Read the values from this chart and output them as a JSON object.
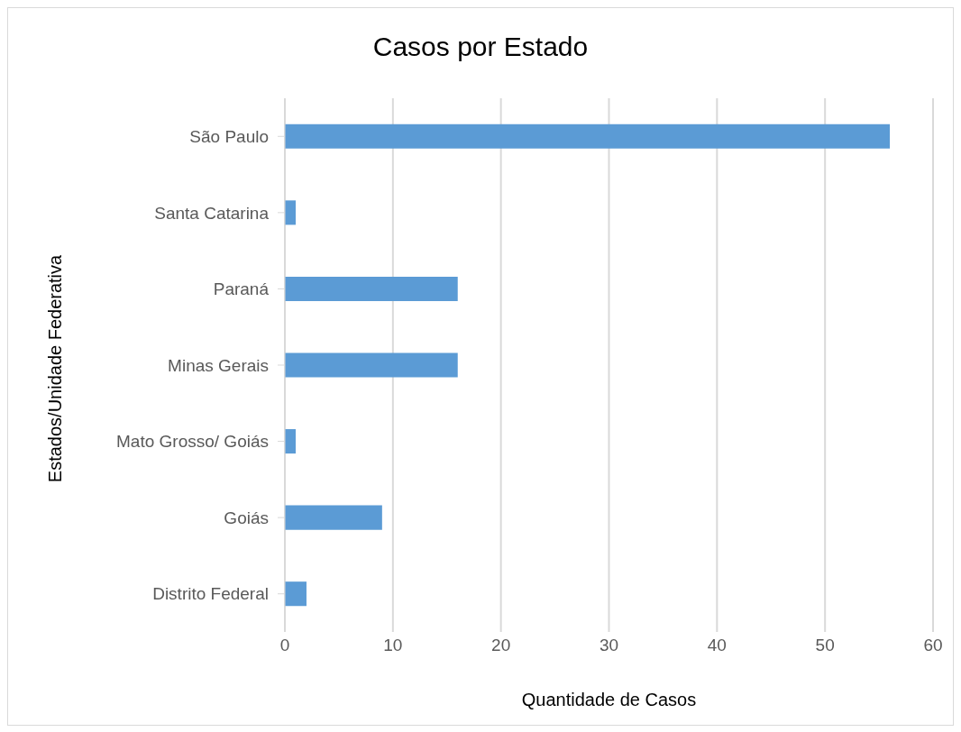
{
  "chart_data": {
    "type": "bar",
    "orientation": "horizontal",
    "title": "Casos por Estado",
    "xlabel": "Quantidade de Casos",
    "ylabel": "Estados/Unidade Federativa",
    "categories": [
      "São Paulo",
      "Santa Catarina",
      "Paraná",
      "Minas Gerais",
      "Mato Grosso/ Goiás",
      "Goiás",
      "Distrito Federal"
    ],
    "values": [
      56,
      1,
      16,
      16,
      1,
      9,
      2
    ],
    "color": "#5b9bd5",
    "xlim": [
      0,
      60
    ],
    "xticks": [
      0,
      10,
      20,
      30,
      40,
      50,
      60
    ],
    "grid": "x",
    "legend": false
  }
}
